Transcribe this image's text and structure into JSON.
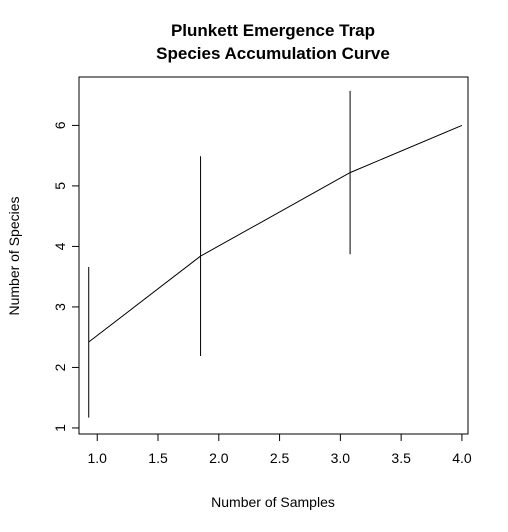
{
  "chart_data": {
    "type": "line",
    "title_lines": [
      "Plunkett Emergence Trap",
      "Species Accumulation Curve"
    ],
    "xlabel": "Number of Samples",
    "ylabel": "Number of Species",
    "xlim": [
      0.85,
      4.05
    ],
    "ylim": [
      0.9,
      6.8
    ],
    "x_ticks": [
      "1.0",
      "1.5",
      "2.0",
      "2.5",
      "3.0",
      "3.5",
      "4.0"
    ],
    "y_ticks": [
      "1",
      "2",
      "3",
      "4",
      "5",
      "6"
    ],
    "grid": false,
    "series": [
      {
        "x": [
          0.93,
          1.85,
          3.08,
          4.0
        ],
        "y": [
          2.42,
          3.84,
          5.22,
          6.0
        ],
        "color": "#000000"
      }
    ],
    "error_bars": [
      {
        "x": 0.93,
        "low": 1.17,
        "high": 3.66
      },
      {
        "x": 1.85,
        "low": 2.19,
        "high": 5.49
      },
      {
        "x": 3.08,
        "low": 3.87,
        "high": 6.57
      }
    ]
  }
}
